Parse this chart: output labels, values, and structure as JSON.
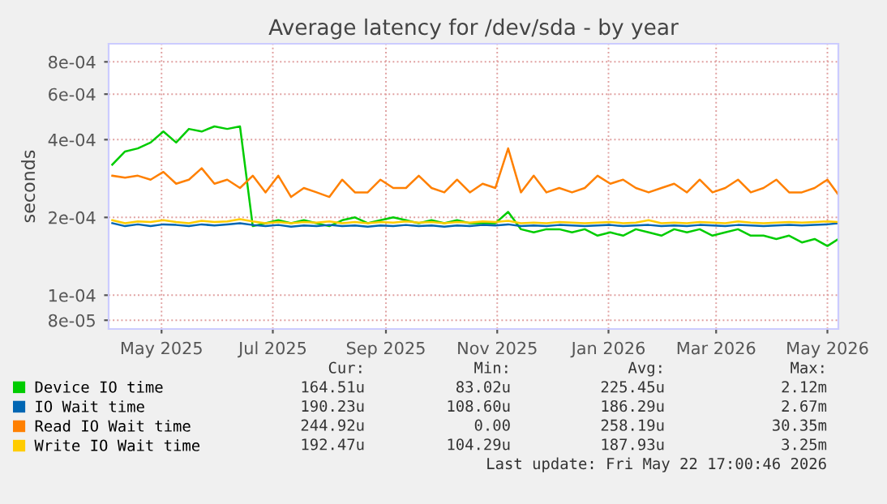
{
  "chart_data": {
    "type": "line",
    "title": "Average latency for /dev/sda - by year",
    "ylabel": "seconds",
    "log": "y",
    "grid": true,
    "legend": "bottom",
    "marker": "none",
    "line_style": "solid",
    "x": [
      "2025-04-19",
      "2025-04-26",
      "2025-05-03",
      "2025-05-10",
      "2025-05-17",
      "2025-05-24",
      "2025-05-31",
      "2025-06-07",
      "2025-06-14",
      "2025-06-21",
      "2025-06-28",
      "2025-07-05",
      "2025-07-12",
      "2025-07-19",
      "2025-07-26",
      "2025-08-02",
      "2025-08-09",
      "2025-08-16",
      "2025-08-23",
      "2025-08-30",
      "2025-09-06",
      "2025-09-13",
      "2025-09-20",
      "2025-09-27",
      "2025-10-04",
      "2025-10-11",
      "2025-10-18",
      "2025-10-25",
      "2025-11-01",
      "2025-11-08",
      "2025-11-15",
      "2025-11-22",
      "2025-11-29",
      "2025-12-06",
      "2025-12-13",
      "2025-12-20",
      "2025-12-27",
      "2026-01-03",
      "2026-01-10",
      "2026-01-17",
      "2026-01-24",
      "2026-01-31",
      "2026-02-07",
      "2026-02-14",
      "2026-02-21",
      "2026-02-28",
      "2026-03-07",
      "2026-03-14",
      "2026-03-21",
      "2026-03-28",
      "2026-04-04",
      "2026-04-11",
      "2026-04-18",
      "2026-04-25",
      "2026-05-02",
      "2026-05-09",
      "2026-05-16",
      "2026-05-22"
    ],
    "series": [
      {
        "name": "Device IO time",
        "color": "#00cc00",
        "values": [
          0.00032,
          0.00036,
          0.00037,
          0.00039,
          0.00043,
          0.00039,
          0.00044,
          0.00043,
          0.00045,
          0.00044,
          0.00045,
          0.000185,
          0.00019,
          0.000195,
          0.00019,
          0.000195,
          0.00019,
          0.000185,
          0.000195,
          0.0002,
          0.00019,
          0.000195,
          0.0002,
          0.000195,
          0.00019,
          0.000195,
          0.00019,
          0.000195,
          0.00019,
          0.00019,
          0.00019,
          0.00021,
          0.00018,
          0.000175,
          0.00018,
          0.00018,
          0.000175,
          0.00018,
          0.00017,
          0.000175,
          0.00017,
          0.00018,
          0.000175,
          0.00017,
          0.00018,
          0.000175,
          0.00018,
          0.00017,
          0.000175,
          0.00018,
          0.00017,
          0.00017,
          0.000165,
          0.00017,
          0.00016,
          0.000165,
          0.000155,
          0.000165
        ]
      },
      {
        "name": "IO Wait time",
        "color": "#0066b3",
        "values": [
          0.00019,
          0.000185,
          0.000188,
          0.000185,
          0.000188,
          0.000187,
          0.000185,
          0.000188,
          0.000186,
          0.000188,
          0.00019,
          0.000187,
          0.000185,
          0.000187,
          0.000184,
          0.000186,
          0.000185,
          0.000187,
          0.000185,
          0.000186,
          0.000184,
          0.000186,
          0.000185,
          0.000187,
          0.000185,
          0.000186,
          0.000184,
          0.000186,
          0.000185,
          0.000187,
          0.000186,
          0.000188,
          0.000185,
          0.000186,
          0.000185,
          0.000187,
          0.000186,
          0.000185,
          0.000186,
          0.000187,
          0.000185,
          0.000186,
          0.000187,
          0.000185,
          0.000186,
          0.000185,
          0.000187,
          0.000186,
          0.000185,
          0.000187,
          0.000186,
          0.000185,
          0.000186,
          0.000187,
          0.000186,
          0.000187,
          0.000188,
          0.00019
        ]
      },
      {
        "name": "Read IO Wait time",
        "color": "#ff8000",
        "values": [
          0.00029,
          0.000285,
          0.00029,
          0.00028,
          0.0003,
          0.00027,
          0.00028,
          0.00031,
          0.00027,
          0.00028,
          0.00026,
          0.00029,
          0.00025,
          0.00029,
          0.00024,
          0.00026,
          0.00025,
          0.00024,
          0.00028,
          0.00025,
          0.00025,
          0.00028,
          0.00026,
          0.00026,
          0.00029,
          0.00026,
          0.00025,
          0.00028,
          0.00025,
          0.00027,
          0.00026,
          0.00037,
          0.00025,
          0.00029,
          0.00025,
          0.00026,
          0.00025,
          0.00026,
          0.00029,
          0.00027,
          0.00028,
          0.00026,
          0.00025,
          0.00026,
          0.00027,
          0.00025,
          0.00028,
          0.00025,
          0.00026,
          0.00028,
          0.00025,
          0.00026,
          0.00028,
          0.00025,
          0.00025,
          0.00026,
          0.00028,
          0.000245
        ]
      },
      {
        "name": "Write IO Wait time",
        "color": "#ffcc00",
        "values": [
          0.000195,
          0.00019,
          0.000193,
          0.000192,
          0.000195,
          0.000192,
          0.00019,
          0.000194,
          0.000192,
          0.000193,
          0.000197,
          0.000193,
          0.00019,
          0.000192,
          0.00019,
          0.000192,
          0.000191,
          0.000193,
          0.00019,
          0.000192,
          0.00019,
          0.000192,
          0.000191,
          0.000193,
          0.000191,
          0.000192,
          0.00019,
          0.000192,
          0.000191,
          0.000193,
          0.000192,
          0.000194,
          0.00019,
          0.000191,
          0.00019,
          0.000192,
          0.000191,
          0.00019,
          0.000191,
          0.000192,
          0.00019,
          0.000191,
          0.000195,
          0.00019,
          0.000191,
          0.00019,
          0.000192,
          0.000191,
          0.00019,
          0.000193,
          0.000191,
          0.00019,
          0.000191,
          0.000192,
          0.000191,
          0.000192,
          0.000193,
          0.000192
        ]
      }
    ],
    "xlim": [
      "2025-04-17",
      "2026-05-22"
    ],
    "xticks": [
      {
        "value": "2025-05-16",
        "label": "May 2025"
      },
      {
        "value": "2025-07-16",
        "label": "Jul 2025"
      },
      {
        "value": "2025-09-16",
        "label": "Sep 2025"
      },
      {
        "value": "2025-11-16",
        "label": "Nov 2025"
      },
      {
        "value": "2026-01-16",
        "label": "Jan 2026"
      },
      {
        "value": "2026-03-16",
        "label": "Mar 2026"
      },
      {
        "value": "2026-05-16",
        "label": "May 2026"
      }
    ],
    "ylim": [
      7.4e-05,
      0.00094
    ],
    "yticks": [
      {
        "value": 8e-05,
        "label": "8e-05"
      },
      {
        "value": 0.0001,
        "label": "1e-04"
      },
      {
        "value": 0.0002,
        "label": "2e-04"
      },
      {
        "value": 0.0004,
        "label": "4e-04"
      },
      {
        "value": 0.0006,
        "label": "6e-04"
      },
      {
        "value": 0.0008,
        "label": "8e-04"
      }
    ],
    "annotations": [
      "Cur:",
      "Min:",
      "Avg:",
      "Max:",
      "164.51u",
      "83.02u",
      "225.45u",
      "2.12m",
      "190.23u",
      "108.60u",
      "186.29u",
      "2.67m",
      "244.92u",
      "0.00",
      "258.19u",
      "30.35m",
      "192.47u",
      "104.29u",
      "187.93u",
      "3.25m",
      "Last update: Fri May 22 17:00:46 2026"
    ]
  }
}
